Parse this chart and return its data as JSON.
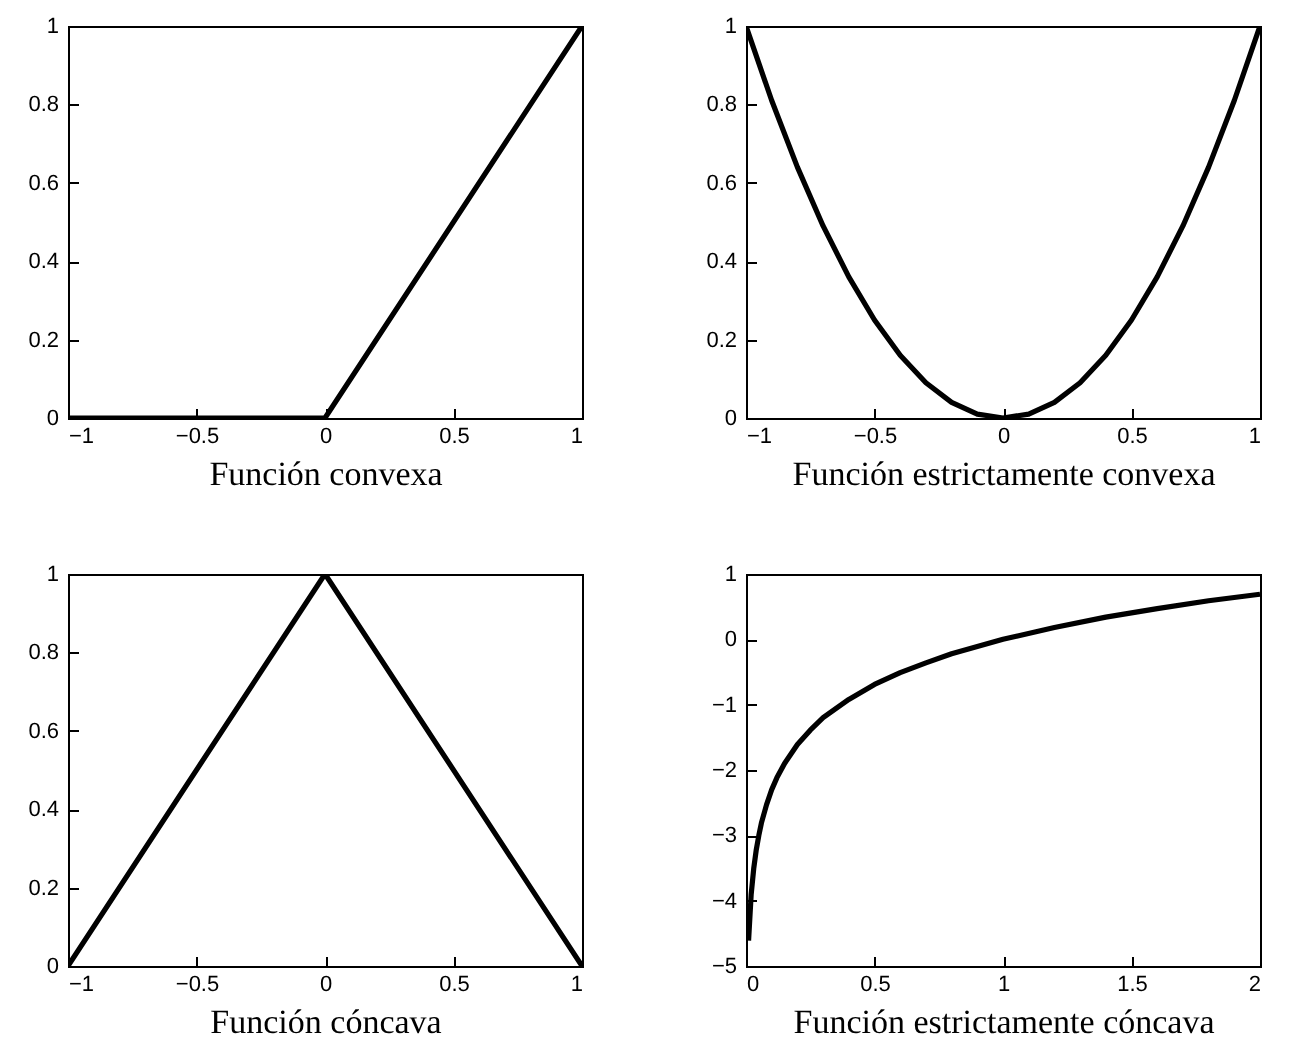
{
  "chart_data": [
    {
      "type": "line",
      "xlabel": "Función convexa",
      "x": [
        -1,
        0,
        1
      ],
      "values": [
        0,
        0,
        1
      ],
      "color": "#000000",
      "xlim": [
        -1,
        1
      ],
      "ylim": [
        0,
        1
      ],
      "xticks": [
        -1,
        -0.5,
        0,
        0.5,
        1
      ],
      "yticks": [
        0,
        0.2,
        0.4,
        0.6,
        0.8,
        1
      ],
      "grid": false
    },
    {
      "type": "line",
      "xlabel": "Función estrictamente convexa",
      "x": [
        -1,
        -0.9,
        -0.8,
        -0.7,
        -0.6,
        -0.5,
        -0.4,
        -0.3,
        -0.2,
        -0.1,
        0,
        0.1,
        0.2,
        0.3,
        0.4,
        0.5,
        0.6,
        0.7,
        0.8,
        0.9,
        1
      ],
      "values": [
        1,
        0.81,
        0.64,
        0.49,
        0.36,
        0.25,
        0.16,
        0.09,
        0.04,
        0.01,
        0,
        0.01,
        0.04,
        0.09,
        0.16,
        0.25,
        0.36,
        0.49,
        0.64,
        0.81,
        1
      ],
      "color": "#000000",
      "xlim": [
        -1,
        1
      ],
      "ylim": [
        0,
        1
      ],
      "xticks": [
        -1,
        -0.5,
        0,
        0.5,
        1
      ],
      "yticks": [
        0,
        0.2,
        0.4,
        0.6,
        0.8,
        1
      ],
      "grid": false
    },
    {
      "type": "line",
      "xlabel": "Función cóncava",
      "x": [
        -1,
        0,
        1
      ],
      "values": [
        0,
        1,
        0
      ],
      "color": "#000000",
      "xlim": [
        -1,
        1
      ],
      "ylim": [
        0,
        1
      ],
      "xticks": [
        -1,
        -0.5,
        0,
        0.5,
        1
      ],
      "yticks": [
        0,
        0.2,
        0.4,
        0.6,
        0.8,
        1
      ],
      "grid": false
    },
    {
      "type": "line",
      "xlabel": "Función estrictamente cóncava",
      "x": [
        0.01,
        0.02,
        0.03,
        0.04,
        0.05,
        0.06,
        0.08,
        0.1,
        0.12,
        0.15,
        0.2,
        0.25,
        0.3,
        0.4,
        0.5,
        0.6,
        0.7,
        0.8,
        0.9,
        1,
        1.2,
        1.4,
        1.6,
        1.8,
        2
      ],
      "values": [
        -4.61,
        -3.91,
        -3.51,
        -3.22,
        -3.0,
        -2.81,
        -2.53,
        -2.3,
        -2.12,
        -1.9,
        -1.61,
        -1.39,
        -1.2,
        -0.92,
        -0.69,
        -0.51,
        -0.36,
        -0.22,
        -0.11,
        0,
        0.18,
        0.34,
        0.47,
        0.59,
        0.69
      ],
      "color": "#000000",
      "xlim": [
        0,
        2
      ],
      "ylim": [
        -5,
        1
      ],
      "xticks": [
        0,
        0.5,
        1,
        1.5,
        2
      ],
      "yticks": [
        -5,
        -4,
        -3,
        -2,
        -1,
        0,
        1
      ],
      "grid": false
    }
  ]
}
